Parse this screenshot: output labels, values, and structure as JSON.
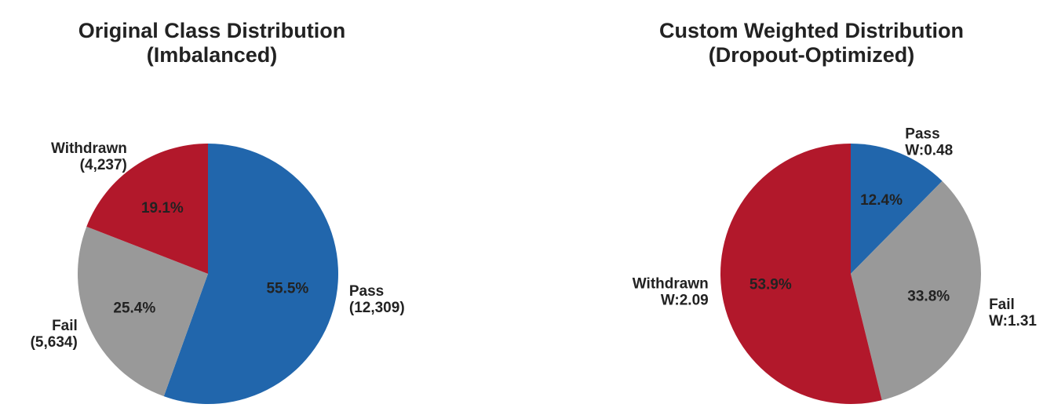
{
  "charts": [
    {
      "title_line1": "Original Class Distribution",
      "title_line2": "(Imbalanced)"
    },
    {
      "title_line1": "Custom Weighted Distribution",
      "title_line2": "(Dropout-Optimized)"
    }
  ],
  "chart_data": [
    {
      "type": "pie",
      "title": "Original Class Distribution\n(Imbalanced)",
      "slices": [
        {
          "label": "Pass",
          "sublabel": "(12,309)",
          "count": 12309,
          "percent": 55.5,
          "pct_label": "55.5%",
          "color": "#2166ac"
        },
        {
          "label": "Fail",
          "sublabel": "(5,634)",
          "count": 5634,
          "percent": 25.4,
          "pct_label": "25.4%",
          "color": "#999999"
        },
        {
          "label": "Withdrawn",
          "sublabel": "(4,237)",
          "count": 4237,
          "percent": 19.1,
          "pct_label": "19.1%",
          "color": "#b2182b"
        }
      ],
      "start_angle": "top",
      "direction": "clockwise"
    },
    {
      "type": "pie",
      "title": "Custom Weighted Distribution\n(Dropout-Optimized)",
      "slices": [
        {
          "label": "Pass",
          "sublabel": "W:0.48",
          "weight": 0.48,
          "percent": 12.4,
          "pct_label": "12.4%",
          "color": "#2166ac"
        },
        {
          "label": "Fail",
          "sublabel": "W:1.31",
          "weight": 1.31,
          "percent": 33.8,
          "pct_label": "33.8%",
          "color": "#999999"
        },
        {
          "label": "Withdrawn",
          "sublabel": "W:2.09",
          "weight": 2.09,
          "percent": 53.9,
          "pct_label": "53.9%",
          "color": "#b2182b"
        }
      ],
      "start_angle": "top",
      "direction": "clockwise"
    }
  ]
}
